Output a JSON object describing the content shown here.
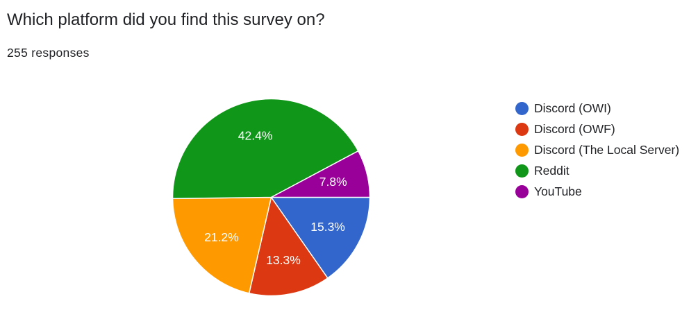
{
  "question": {
    "title": "Which platform did you find this survey on?",
    "response_count": "255 responses"
  },
  "chart_data": {
    "type": "pie",
    "title": "Which platform did you find this survey on?",
    "categories": [
      "Discord (OWI)",
      "Discord (OWF)",
      "Discord (The Local Server)",
      "Reddit",
      "YouTube"
    ],
    "values": [
      15.3,
      13.3,
      21.2,
      42.4,
      7.8
    ],
    "labels": [
      "15.3%",
      "13.3%",
      "21.2%",
      "42.4%",
      "7.8%"
    ],
    "colors": [
      "#3366cc",
      "#dc3912",
      "#ff9900",
      "#109618",
      "#990099"
    ],
    "start": "3 o'clock",
    "direction": "clockwise",
    "legend": "right"
  }
}
